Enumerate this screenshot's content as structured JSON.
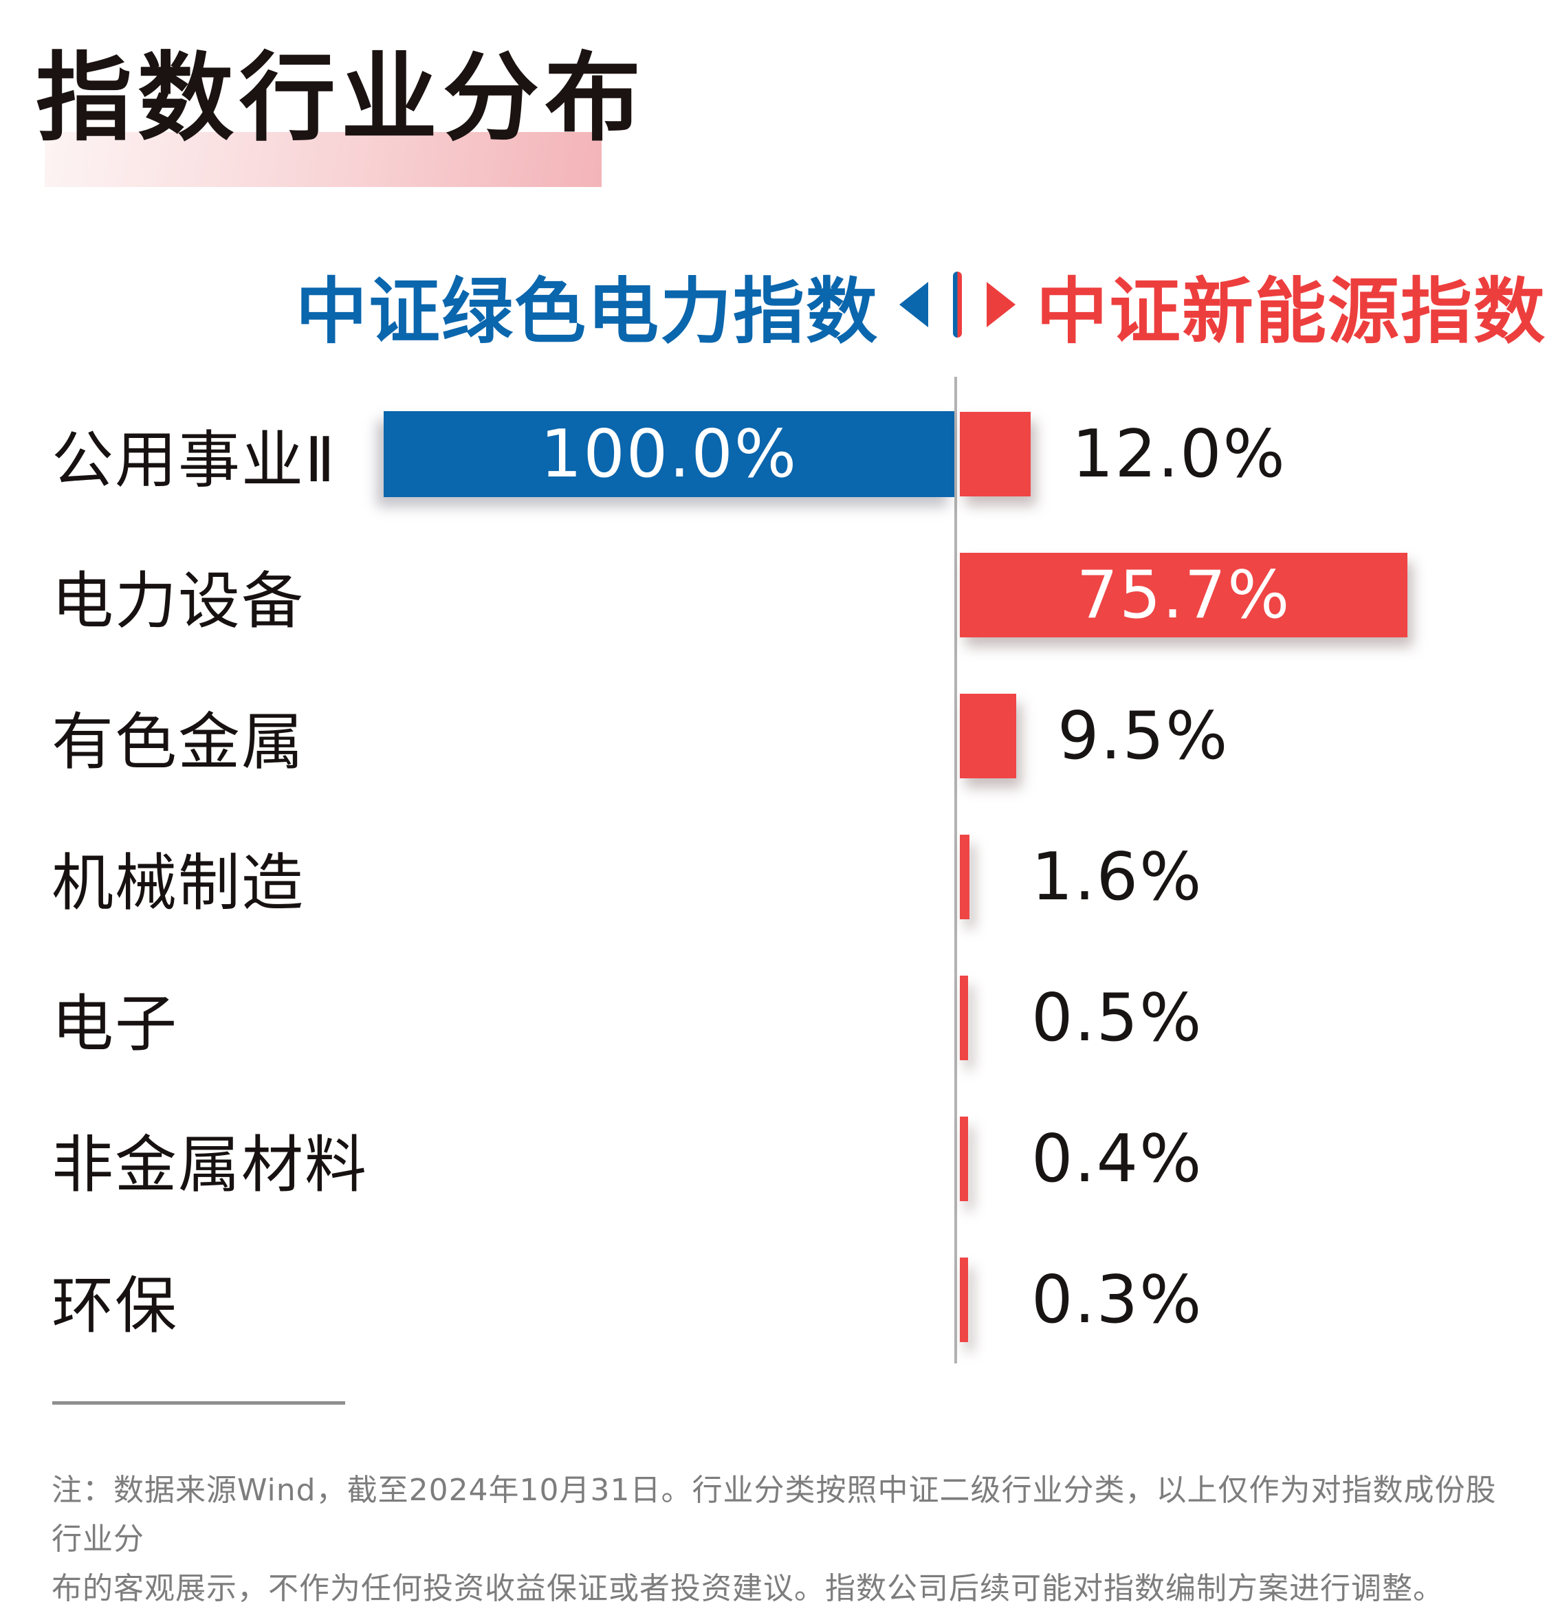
{
  "title": "指数行业分布",
  "legend": {
    "left_label": "中证绿色电力指数",
    "right_label": "中证新能源指数",
    "left_color": "#0a66ad",
    "right_color": "#ed3e3e"
  },
  "chart_data": {
    "type": "bar",
    "orientation": "horizontal-bidirectional",
    "unit": "%",
    "categories": [
      "公用事业Ⅱ",
      "电力设备",
      "有色金属",
      "机械制造",
      "电子",
      "非金属材料",
      "环保"
    ],
    "series": [
      {
        "name": "中证绿色电力指数",
        "side": "left",
        "color": "#0a66ad",
        "values": [
          100.0,
          null,
          null,
          null,
          null,
          null,
          null
        ]
      },
      {
        "name": "中证新能源指数",
        "side": "right",
        "color": "#ef4545",
        "values": [
          12.0,
          75.7,
          9.5,
          1.6,
          0.5,
          0.4,
          0.3
        ]
      }
    ],
    "rows": [
      {
        "label": "公用事业Ⅱ",
        "left": 100.0,
        "left_display": "100.0%",
        "right": 12.0,
        "right_display": "12.0%",
        "right_label_position": "outside"
      },
      {
        "label": "电力设备",
        "left": null,
        "left_display": "",
        "right": 75.7,
        "right_display": "75.7%",
        "right_label_position": "inside"
      },
      {
        "label": "有色金属",
        "left": null,
        "left_display": "",
        "right": 9.5,
        "right_display": "9.5%",
        "right_label_position": "outside"
      },
      {
        "label": "机械制造",
        "left": null,
        "left_display": "",
        "right": 1.6,
        "right_display": "1.6%",
        "right_label_position": "outside"
      },
      {
        "label": "电子",
        "left": null,
        "left_display": "",
        "right": 0.5,
        "right_display": "0.5%",
        "right_label_position": "outside"
      },
      {
        "label": "非金属材料",
        "left": null,
        "left_display": "",
        "right": 0.4,
        "right_display": "0.4%",
        "right_label_position": "outside"
      },
      {
        "label": "环保",
        "left": null,
        "left_display": "",
        "right": 0.3,
        "right_display": "0.3%",
        "right_label_position": "outside"
      }
    ],
    "axis": {
      "center_line": true,
      "gridlines": false,
      "value_labels": "on-bars"
    }
  },
  "footnote": {
    "line1": "注：数据来源Wind，截至2024年10月31日。行业分类按照中证二级行业分类，以上仅作为对指数成份股行业分",
    "line2": "布的客观展示，不作为任何投资收益保证或者投资建议。指数公司后续可能对指数编制方案进行调整。"
  }
}
